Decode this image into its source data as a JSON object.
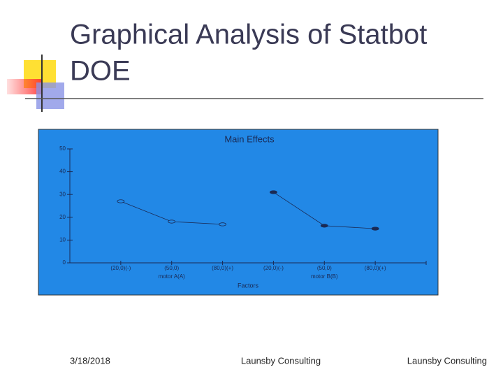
{
  "slide": {
    "title_lines": [
      "Graphical Analysis of Statbot",
      "DOE"
    ]
  },
  "chart_data": {
    "type": "line",
    "title": "Main Effects",
    "x_label": "Factors",
    "ylim": [
      0,
      50
    ],
    "yticks": [
      0,
      10,
      20,
      30,
      40,
      50
    ],
    "background": "#2288e6",
    "color": "#1a2a55",
    "groups": [
      {
        "name": "motor A(A)",
        "categories": [
          "(20,0)(-)",
          "(50,0)",
          "(80,0)(+)"
        ],
        "values": [
          27,
          18.1,
          16.9
        ],
        "marker": "open"
      },
      {
        "name": "motor B(B)",
        "categories": [
          "(20,0)(-)",
          "(50,0)",
          "(80,0)(+)"
        ],
        "values": [
          31,
          16.3,
          15
        ],
        "marker": "filled"
      }
    ]
  },
  "footer": {
    "date": "3/18/2018",
    "center": "Launsby Consulting",
    "right": "Launsby Consulting"
  }
}
